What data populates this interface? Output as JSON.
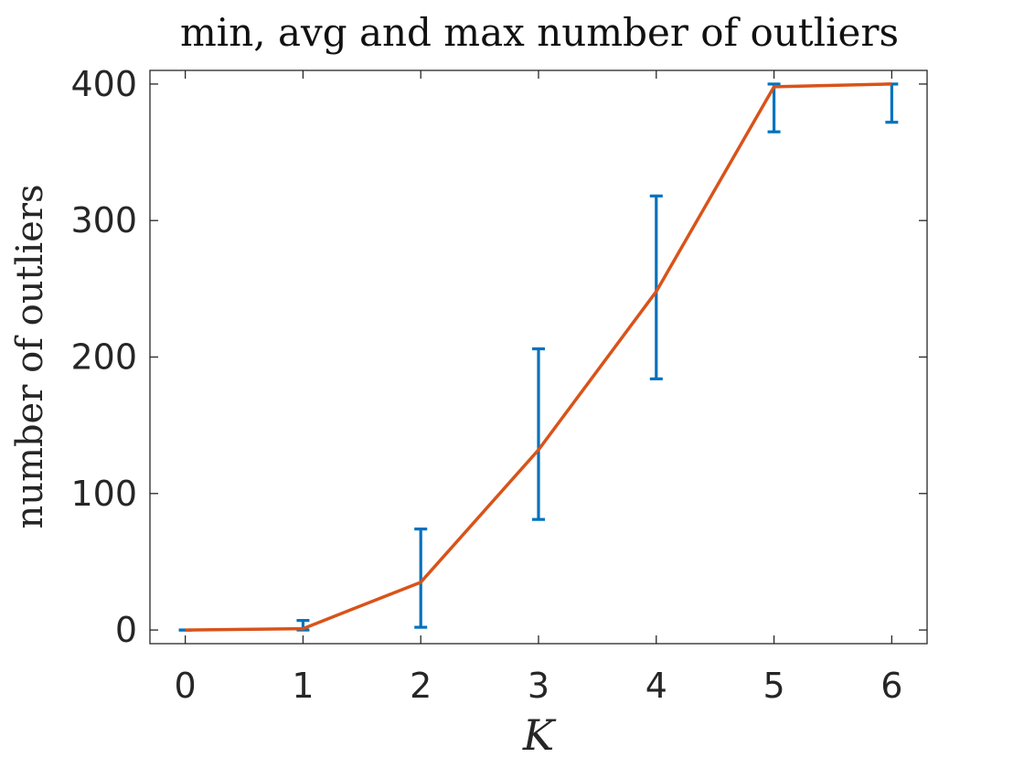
{
  "chart_data": {
    "type": "line",
    "title": "min, avg and max number of outliers",
    "xlabel": "K",
    "ylabel": "number of outliers",
    "x": [
      0,
      1,
      2,
      3,
      4,
      5,
      6
    ],
    "xticks": [
      "0",
      "1",
      "2",
      "3",
      "4",
      "5",
      "6"
    ],
    "yticks": [
      "0",
      "100",
      "200",
      "300",
      "400"
    ],
    "xlim": [
      -0.3,
      6.3
    ],
    "ylim": [
      -10,
      410
    ],
    "grid": false,
    "series": [
      {
        "values": [
          0,
          1,
          35,
          132,
          248,
          398,
          400
        ],
        "color": "#D95319",
        "style": "line"
      },
      {
        "min": [
          0,
          0,
          2,
          81,
          184,
          365,
          372
        ],
        "max": [
          0,
          7,
          74,
          206,
          318,
          400,
          400
        ],
        "color": "#0072BD",
        "style": "errorbar"
      }
    ]
  }
}
